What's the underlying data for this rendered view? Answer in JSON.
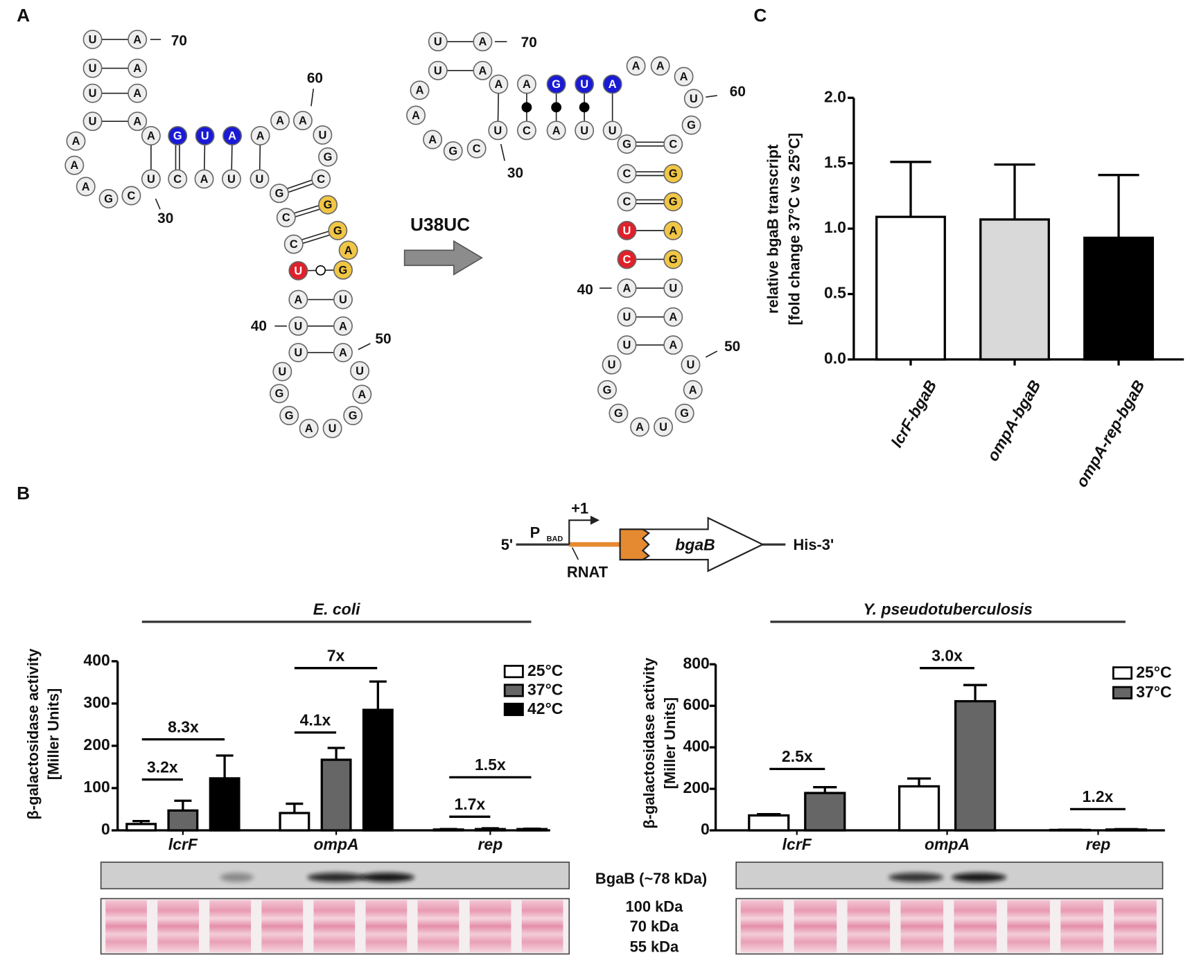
{
  "panel_labels": [
    "A",
    "B",
    "C"
  ],
  "rna": {
    "mutation": "U38UC",
    "wild_type": {
      "nucleotides": [
        "U",
        "U",
        "U",
        "U",
        "A",
        "A",
        "A",
        "G",
        "C",
        "U",
        "C",
        "A",
        "U",
        "U",
        "G",
        "C",
        "C",
        "U",
        "A",
        "U",
        "U",
        "U",
        "G",
        "G",
        "A",
        "U",
        "G",
        "A",
        "U",
        "A",
        "A",
        "U",
        "G",
        "A",
        "G",
        "G",
        "C",
        "G",
        "U",
        "A",
        "A",
        "A",
        "A",
        "U",
        "G",
        "A",
        "A",
        "A",
        "A",
        "A"
      ],
      "position_labels": [
        70,
        60,
        30,
        40,
        50
      ]
    },
    "mutant": {
      "nucleotides": [
        "U",
        "U",
        "A",
        "A",
        "A",
        "G",
        "C",
        "U",
        "C",
        "A",
        "U",
        "U",
        "G",
        "C",
        "C",
        "U",
        "C",
        "A",
        "U",
        "U",
        "U",
        "G",
        "G",
        "A",
        "U",
        "G",
        "A",
        "U",
        "A",
        "A",
        "U",
        "G",
        "A",
        "G",
        "G",
        "C",
        "G",
        "U",
        "A",
        "A",
        "A",
        "A",
        "U",
        "G",
        "A",
        "A",
        "A",
        "A"
      ],
      "position_labels": [
        70,
        60,
        30,
        40,
        50
      ]
    }
  },
  "construct": {
    "five_prime": "5'",
    "promoter": "P",
    "promoter_sub": "BAD",
    "tss": "+1",
    "rnat": "RNAT",
    "gene": "bgaB",
    "three_prime": "His-3'"
  },
  "chart_data": [
    {
      "type": "bar",
      "ylabel": [
        "relative bgaB transcript",
        "[fold change 37°C vs 25°C]"
      ],
      "categories": [
        "lcrF-bgaB",
        "ompA-bgaB",
        "ompA-rep-bgaB"
      ],
      "values": [
        1.09,
        1.07,
        0.93
      ],
      "errors": [
        0.42,
        0.42,
        0.48
      ],
      "colors": [
        "#ffffff",
        "#d9d9d9",
        "#000000"
      ],
      "ylim": [
        0,
        2
      ],
      "yticks": [
        {
          "value": 0,
          "label": "0.0"
        },
        0.5,
        {
          "value": 1,
          "label": "1.0"
        },
        1.5,
        {
          "value": 2,
          "label": "2.0"
        }
      ]
    },
    {
      "type": "grouped_bar",
      "title": "E. coli",
      "ylabel": [
        "β-galactosidase  activity",
        "[Miller Units]"
      ],
      "categories": [
        "lcrF",
        "ompA",
        "rep"
      ],
      "series": [
        {
          "name": "25°C",
          "color": "#ffffff",
          "values": [
            15,
            41,
            2
          ],
          "errors": [
            7,
            22,
            1
          ]
        },
        {
          "name": "37°C",
          "color": "#666666",
          "values": [
            47,
            167,
            3
          ],
          "errors": [
            23,
            28,
            2
          ]
        },
        {
          "name": "42°C",
          "color": "#000000",
          "values": [
            123,
            285,
            3
          ],
          "errors": [
            54,
            67,
            1
          ]
        }
      ],
      "ylim": [
        0,
        400
      ],
      "yticks": [
        0,
        100,
        200,
        300,
        400
      ],
      "annotations": [
        "3.2x",
        "8.3x",
        "4.1x",
        "7x",
        "1.7x",
        "1.5x"
      ],
      "legend": "upper right"
    },
    {
      "type": "grouped_bar",
      "title": "Y. pseudotuberculosis",
      "ylabel": [
        "β-galactosidase  activity",
        "[Miller Units]"
      ],
      "categories": [
        "lcrF",
        "ompA",
        "rep"
      ],
      "series": [
        {
          "name": "25°C",
          "color": "#ffffff",
          "values": [
            72,
            212,
            2
          ],
          "errors": [
            6,
            38,
            1
          ]
        },
        {
          "name": "37°C",
          "color": "#666666",
          "values": [
            180,
            622,
            4
          ],
          "errors": [
            28,
            78,
            2
          ]
        }
      ],
      "ylim": [
        0,
        800
      ],
      "yticks": [
        0,
        200,
        400,
        600,
        800
      ],
      "annotations": [
        "2.5x",
        "3.0x",
        "1.2x"
      ],
      "legend": "upper right"
    }
  ],
  "blots": {
    "western_label": "BgaB (~78 kDa)",
    "markers": [
      "100 kDa",
      "70 kDa",
      "55 kDa"
    ]
  }
}
